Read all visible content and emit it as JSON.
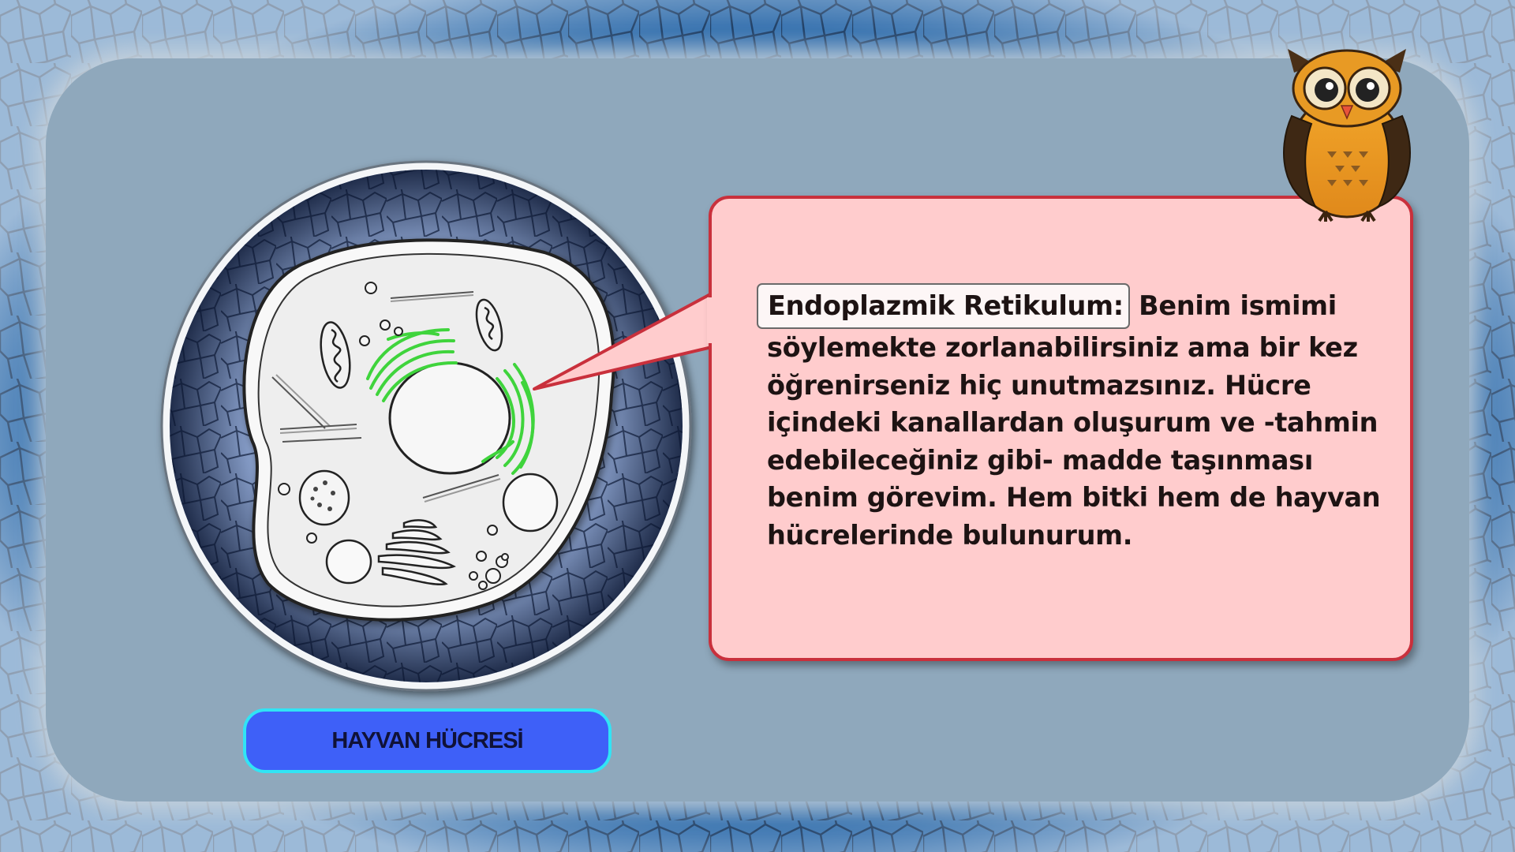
{
  "speech": {
    "term": "Endoplazmik Retikulum:",
    "text": " Benim ismimi söylemekte zorlanabilirsiniz ama bir kez öğrenirseniz hiç unutmazsınız. Hücre içindeki kanallardan oluşurum ve -tahmin edebileceğiniz gibi- madde taşınması benim görevim. Hem bitki hem de hayvan hücrelerinde bulunurum."
  },
  "cell_label": "HAYVAN HÜCRESİ",
  "colors": {
    "frame_blue": "#2b5f96",
    "panel": "#8fa8bc",
    "bubble_fill": "#ffcccd",
    "bubble_border": "#c9303c",
    "label_fill": "#3e60f8",
    "label_border": "#31e4f5",
    "er_green": "#3fd43c"
  },
  "icons": [
    "owl-mascot-icon",
    "animal-cell-illustration"
  ]
}
